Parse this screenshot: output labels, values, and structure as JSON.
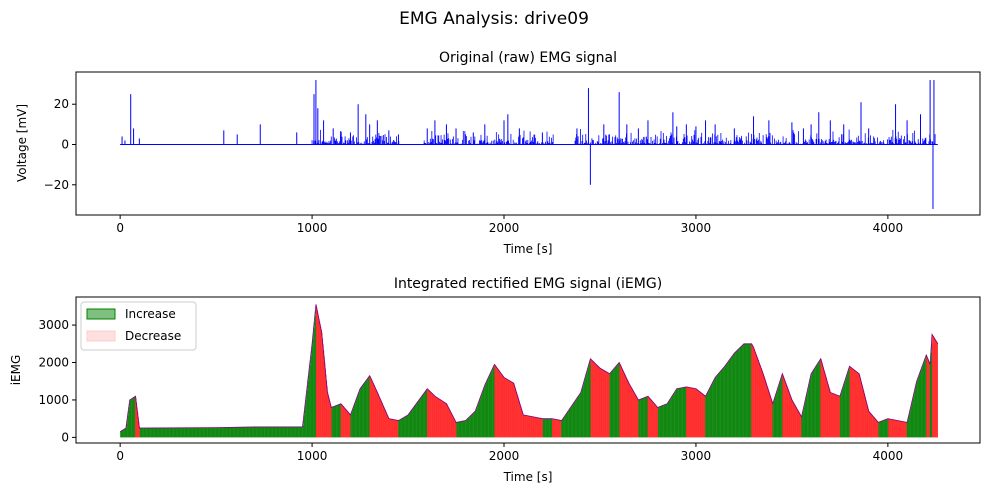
{
  "figure": {
    "suptitle": "EMG Analysis: drive09"
  },
  "chart_data": [
    {
      "type": "line",
      "title": "Original (raw) EMG signal",
      "xlabel": "Time [s]",
      "ylabel": "Voltage [mV]",
      "xlim": [
        -230,
        4480
      ],
      "ylim": [
        -35,
        36
      ],
      "xticks": [
        0,
        1000,
        2000,
        3000,
        4000
      ],
      "yticks": [
        -20,
        0,
        20
      ],
      "grid": false,
      "series": [
        {
          "color": "#0000ff",
          "spikes": [
            [
              10,
              4
            ],
            [
              25,
              2
            ],
            [
              55,
              25
            ],
            [
              70,
              8
            ],
            [
              100,
              3
            ],
            [
              540,
              7
            ],
            [
              610,
              5
            ],
            [
              730,
              10
            ],
            [
              920,
              6
            ],
            [
              1010,
              25
            ],
            [
              1020,
              32
            ],
            [
              1030,
              18
            ],
            [
              1060,
              12
            ],
            [
              1110,
              8
            ],
            [
              1150,
              5
            ],
            [
              1200,
              6
            ],
            [
              1240,
              20
            ],
            [
              1280,
              15
            ],
            [
              1300,
              10
            ],
            [
              1340,
              12
            ],
            [
              1400,
              7
            ],
            [
              1450,
              5
            ],
            [
              1600,
              8
            ],
            [
              1640,
              12
            ],
            [
              1700,
              10
            ],
            [
              1750,
              8
            ],
            [
              1840,
              6
            ],
            [
              1900,
              10
            ],
            [
              2000,
              12
            ],
            [
              2020,
              15
            ],
            [
              2080,
              8
            ],
            [
              2200,
              6
            ],
            [
              2380,
              8
            ],
            [
              2440,
              28
            ],
            [
              2450,
              -20
            ],
            [
              2520,
              10
            ],
            [
              2600,
              26
            ],
            [
              2640,
              10
            ],
            [
              2700,
              8
            ],
            [
              2750,
              12
            ],
            [
              2880,
              16
            ],
            [
              2900,
              9
            ],
            [
              2950,
              10
            ],
            [
              3000,
              9
            ],
            [
              3050,
              12
            ],
            [
              3100,
              10
            ],
            [
              3200,
              8
            ],
            [
              3300,
              14
            ],
            [
              3380,
              12
            ],
            [
              3500,
              11
            ],
            [
              3560,
              8
            ],
            [
              3600,
              10
            ],
            [
              3640,
              16
            ],
            [
              3700,
              12
            ],
            [
              3770,
              10
            ],
            [
              3860,
              21
            ],
            [
              3900,
              8
            ],
            [
              4040,
              20
            ],
            [
              4100,
              12
            ],
            [
              4170,
              15
            ],
            [
              4220,
              32
            ],
            [
              4235,
              -32
            ],
            [
              4240,
              32
            ]
          ]
        }
      ]
    },
    {
      "type": "area",
      "title": "Integrated rectified EMG signal (iEMG)",
      "xlabel": "Time [s]",
      "ylabel": "iEMG",
      "xlim": [
        -230,
        4480
      ],
      "ylim": [
        -150,
        3750
      ],
      "xticks": [
        0,
        1000,
        2000,
        3000,
        4000
      ],
      "yticks": [
        0,
        1000,
        2000,
        3000
      ],
      "grid": false,
      "legend": {
        "position": "upper-left",
        "entries": [
          "Increase",
          "Decrease"
        ]
      },
      "colors": {
        "increase": "#008000",
        "decrease": "#ff0000",
        "line": "#800080"
      },
      "series": [
        {
          "name": "iEMG",
          "x": [
            0,
            30,
            50,
            80,
            100,
            500,
            700,
            950,
            1000,
            1020,
            1050,
            1080,
            1100,
            1150,
            1200,
            1250,
            1300,
            1340,
            1400,
            1450,
            1500,
            1600,
            1640,
            1700,
            1750,
            1800,
            1850,
            1900,
            1950,
            2000,
            2050,
            2100,
            2150,
            2200,
            2250,
            2300,
            2400,
            2450,
            2500,
            2550,
            2600,
            2650,
            2700,
            2750,
            2800,
            2850,
            2900,
            2950,
            3000,
            3050,
            3100,
            3150,
            3200,
            3250,
            3290,
            3300,
            3350,
            3400,
            3450,
            3500,
            3550,
            3600,
            3650,
            3700,
            3750,
            3800,
            3850,
            3900,
            3950,
            4000,
            4050,
            4100,
            4150,
            4200,
            4220,
            4230,
            4260
          ],
          "values": [
            150,
            250,
            1000,
            1100,
            250,
            260,
            280,
            280,
            2500,
            3550,
            2800,
            1200,
            800,
            900,
            600,
            1300,
            1650,
            1200,
            500,
            450,
            600,
            1300,
            1100,
            900,
            400,
            450,
            700,
            1400,
            1950,
            1600,
            1450,
            600,
            550,
            500,
            500,
            450,
            1200,
            2100,
            1850,
            1700,
            2000,
            1450,
            1000,
            1100,
            800,
            900,
            1300,
            1350,
            1300,
            1100,
            1600,
            1900,
            2250,
            2500,
            2500,
            2400,
            1700,
            900,
            1700,
            1000,
            550,
            1700,
            2100,
            1200,
            1100,
            1900,
            1700,
            700,
            400,
            500,
            450,
            400,
            1500,
            2200,
            1950,
            2750,
            2500
          ]
        }
      ]
    }
  ]
}
